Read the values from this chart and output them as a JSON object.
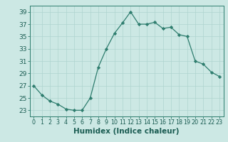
{
  "x": [
    0,
    1,
    2,
    3,
    4,
    5,
    6,
    7,
    8,
    9,
    10,
    11,
    12,
    13,
    14,
    15,
    16,
    17,
    18,
    19,
    20,
    21,
    22,
    23
  ],
  "y": [
    27,
    25.5,
    24.5,
    24,
    23.2,
    23,
    23,
    25,
    30,
    33,
    35.5,
    37.2,
    39,
    37,
    37,
    37.3,
    36.3,
    36.5,
    35.3,
    35,
    31,
    30.5,
    29.2,
    28.5
  ],
  "line_color": "#2e7d6e",
  "marker_color": "#2e7d6e",
  "bg_color": "#cce8e4",
  "grid_color": "#aed4cf",
  "xlabel": "Humidex (Indice chaleur)",
  "ylim": [
    22,
    40
  ],
  "xlim": [
    -0.5,
    23.5
  ],
  "yticks": [
    23,
    25,
    27,
    29,
    31,
    33,
    35,
    37,
    39
  ],
  "xticks": [
    0,
    1,
    2,
    3,
    4,
    5,
    6,
    7,
    8,
    9,
    10,
    11,
    12,
    13,
    14,
    15,
    16,
    17,
    18,
    19,
    20,
    21,
    22,
    23
  ],
  "tick_color": "#2e7d6e",
  "label_color": "#1a5c52",
  "xlabel_fontsize": 7.5,
  "ytick_fontsize": 6.5,
  "xtick_fontsize": 5.8
}
